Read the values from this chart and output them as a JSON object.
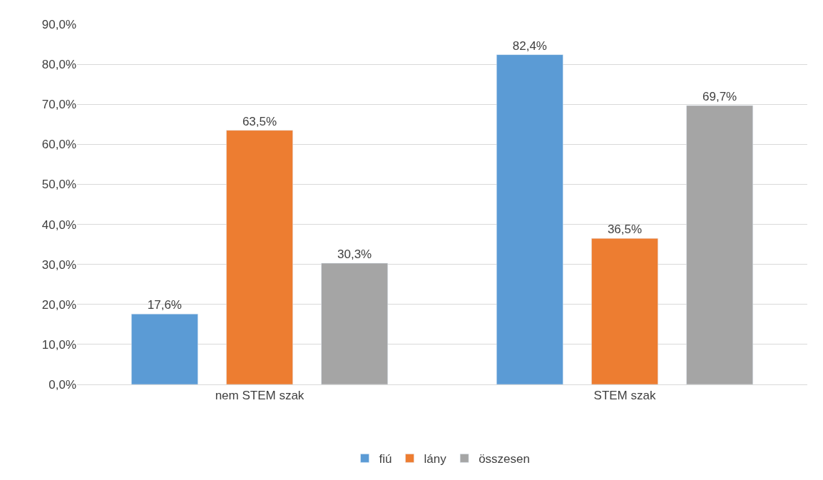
{
  "chart_data": {
    "type": "bar",
    "categories": [
      "nem STEM szak",
      "STEM szak"
    ],
    "series": [
      {
        "name": "fiú",
        "color": "#5b9bd5",
        "values": [
          17.6,
          82.4
        ],
        "value_labels": [
          "17,6%",
          "82,4%"
        ]
      },
      {
        "name": "lány",
        "color": "#ed7d31",
        "values": [
          63.5,
          36.5
        ],
        "value_labels": [
          "63,5%",
          "36,5%"
        ]
      },
      {
        "name": "összesen",
        "color": "#a5a5a5",
        "values": [
          30.3,
          69.7
        ],
        "value_labels": [
          "30,3%",
          "69,7%"
        ]
      }
    ],
    "ylim": [
      0,
      90
    ],
    "yticks": [
      {
        "value": 0,
        "label": "0,0%"
      },
      {
        "value": 10,
        "label": "10,0%"
      },
      {
        "value": 20,
        "label": "20,0%"
      },
      {
        "value": 30,
        "label": "30,0%"
      },
      {
        "value": 40,
        "label": "40,0%"
      },
      {
        "value": 50,
        "label": "50,0%"
      },
      {
        "value": 60,
        "label": "60,0%"
      },
      {
        "value": 70,
        "label": "70,0%"
      },
      {
        "value": 80,
        "label": "80,0%"
      },
      {
        "value": 90,
        "label": "90,0%"
      }
    ],
    "grid": "y",
    "legend": "bottom"
  }
}
